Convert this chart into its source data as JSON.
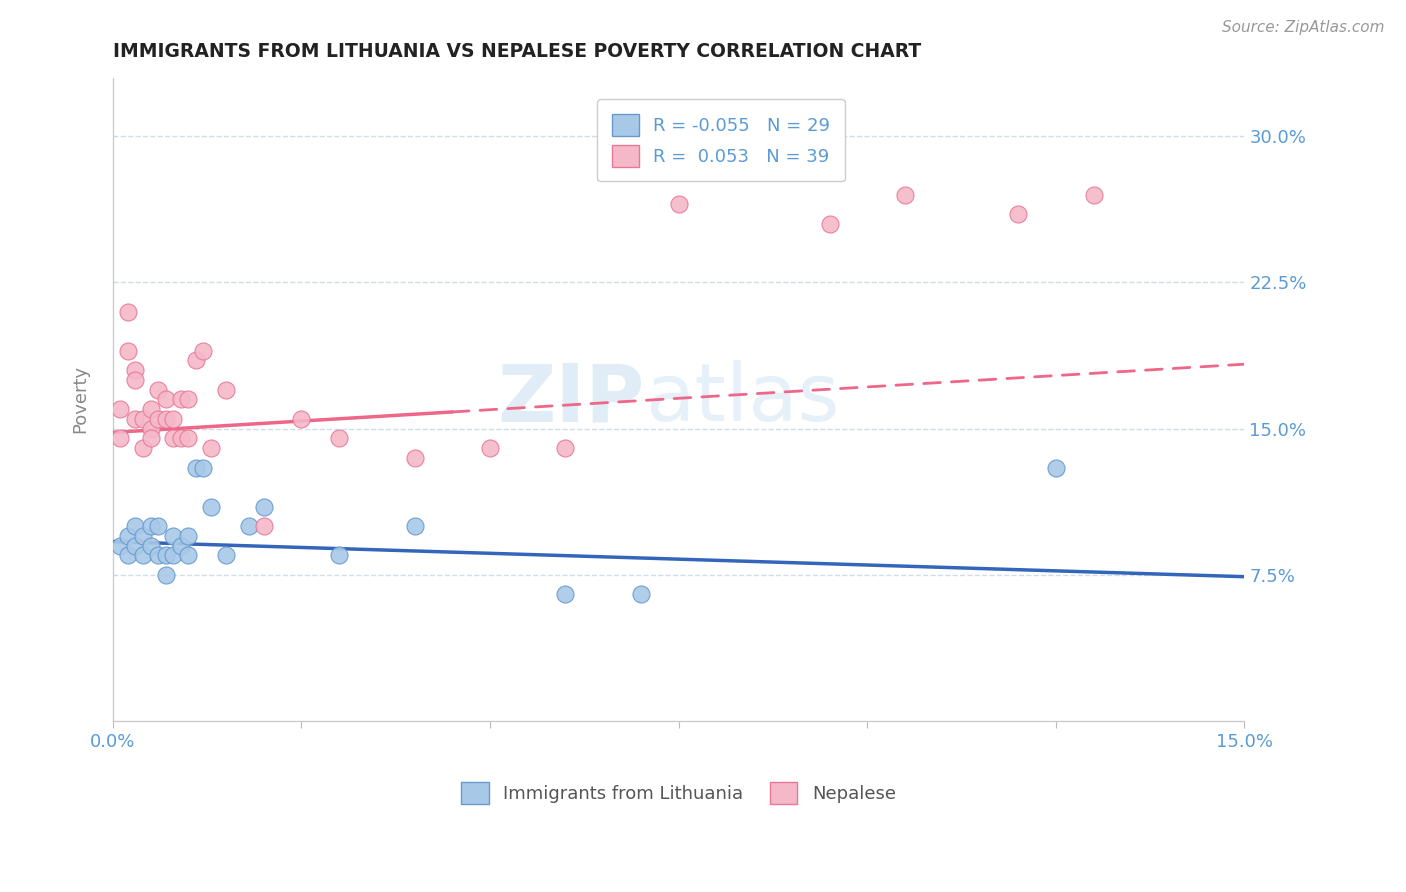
{
  "title": "IMMIGRANTS FROM LITHUANIA VS NEPALESE POVERTY CORRELATION CHART",
  "source": "Source: ZipAtlas.com",
  "xlabel_blue": "Immigrants from Lithuania",
  "xlabel_pink": "Nepalese",
  "ylabel": "Poverty",
  "xlim": [
    0.0,
    0.15
  ],
  "ylim": [
    0.0,
    0.33
  ],
  "yticks": [
    0.075,
    0.15,
    0.225,
    0.3
  ],
  "yticklabels": [
    "7.5%",
    "15.0%",
    "22.5%",
    "30.0%"
  ],
  "xtick_positions": [
    0.0,
    0.025,
    0.05,
    0.075,
    0.1,
    0.125,
    0.15
  ],
  "xticklabels": [
    "0.0%",
    "",
    "",
    "",
    "",
    "",
    "15.0%"
  ],
  "legend_blue_r": "-0.055",
  "legend_blue_n": "29",
  "legend_pink_r": "0.053",
  "legend_pink_n": "39",
  "blue_color": "#a8c8e8",
  "pink_color": "#f4b8c8",
  "blue_edge_color": "#6699cc",
  "pink_edge_color": "#e87898",
  "blue_line_color": "#3366bb",
  "pink_line_color": "#ee6688",
  "grid_color": "#d0dde8",
  "axis_label_color": "#5b9bd5",
  "ylabel_color": "#888888",
  "title_color": "#222222",
  "watermark_color": "#c8dff0",
  "blue_scatter_x": [
    0.001,
    0.002,
    0.002,
    0.003,
    0.003,
    0.004,
    0.004,
    0.005,
    0.005,
    0.006,
    0.006,
    0.007,
    0.007,
    0.008,
    0.008,
    0.009,
    0.01,
    0.01,
    0.011,
    0.012,
    0.013,
    0.015,
    0.018,
    0.02,
    0.03,
    0.04,
    0.06,
    0.07,
    0.125
  ],
  "blue_scatter_y": [
    0.09,
    0.085,
    0.095,
    0.09,
    0.1,
    0.085,
    0.095,
    0.09,
    0.1,
    0.085,
    0.1,
    0.075,
    0.085,
    0.085,
    0.095,
    0.09,
    0.085,
    0.095,
    0.13,
    0.13,
    0.11,
    0.085,
    0.1,
    0.11,
    0.085,
    0.1,
    0.065,
    0.065,
    0.13
  ],
  "pink_scatter_x": [
    0.001,
    0.001,
    0.002,
    0.002,
    0.003,
    0.003,
    0.003,
    0.004,
    0.004,
    0.005,
    0.005,
    0.005,
    0.006,
    0.006,
    0.007,
    0.007,
    0.008,
    0.008,
    0.009,
    0.009,
    0.01,
    0.01,
    0.011,
    0.012,
    0.013,
    0.015,
    0.02,
    0.025,
    0.03,
    0.04,
    0.05,
    0.06,
    0.075,
    0.08,
    0.09,
    0.095,
    0.105,
    0.12,
    0.13
  ],
  "pink_scatter_y": [
    0.145,
    0.16,
    0.19,
    0.21,
    0.18,
    0.175,
    0.155,
    0.155,
    0.14,
    0.16,
    0.15,
    0.145,
    0.17,
    0.155,
    0.165,
    0.155,
    0.145,
    0.155,
    0.145,
    0.165,
    0.145,
    0.165,
    0.185,
    0.19,
    0.14,
    0.17,
    0.1,
    0.155,
    0.145,
    0.135,
    0.14,
    0.14,
    0.265,
    0.3,
    0.285,
    0.255,
    0.27,
    0.26,
    0.27
  ],
  "blue_trend_x0": 0.0,
  "blue_trend_y0": 0.092,
  "blue_trend_x1": 0.15,
  "blue_trend_y1": 0.074,
  "pink_trend_x0": 0.0,
  "pink_trend_y0": 0.148,
  "pink_trend_x1": 0.15,
  "pink_trend_y1": 0.183
}
